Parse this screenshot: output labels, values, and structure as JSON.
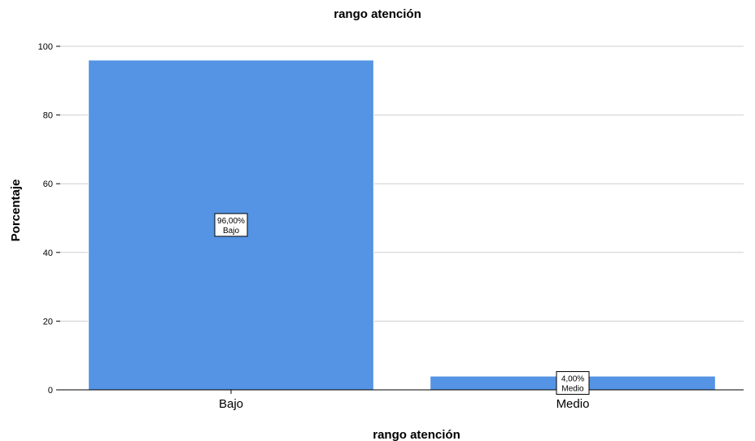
{
  "chart_data": {
    "type": "bar",
    "title": "rango atención",
    "xlabel": "rango atención",
    "ylabel": "Porcentaje",
    "categories": [
      "Bajo",
      "Medio"
    ],
    "values": [
      96.0,
      4.0
    ],
    "data_labels": [
      {
        "value": "96,00%",
        "category": "Bajo"
      },
      {
        "value": "4,00%",
        "category": "Medio"
      }
    ],
    "yticks": [
      "0",
      "20",
      "40",
      "60",
      "80",
      "100"
    ],
    "ylim": [
      0,
      100
    ],
    "grid": "horizontal",
    "bar_color": "#5594e4"
  }
}
